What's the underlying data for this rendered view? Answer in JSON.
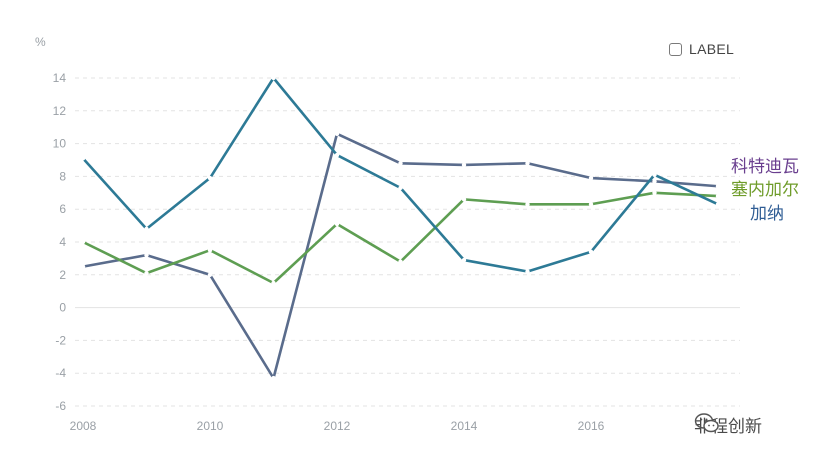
{
  "chart_data": {
    "type": "line",
    "title": "",
    "xlabel": "",
    "ylabel": "%",
    "x": [
      2008,
      2009,
      2010,
      2011,
      2012,
      2013,
      2014,
      2015,
      2016,
      2017,
      2018
    ],
    "x_ticks": [
      "2008",
      "2010",
      "2012",
      "2014",
      "2016"
    ],
    "y_ticks": [
      "14",
      "12",
      "10",
      "8",
      "6",
      "4",
      "2",
      "0",
      "-2",
      "-4",
      "-6"
    ],
    "xlim": [
      2008,
      2018
    ],
    "ylim": [
      -6,
      14.6
    ],
    "grid": "horizontal-dashed",
    "legend": {
      "label": "LABEL",
      "position": "top-right"
    },
    "series": [
      {
        "name": "科特迪瓦",
        "color": "#5a6c8c",
        "values": [
          2.5,
          3.2,
          2.0,
          -4.3,
          10.6,
          8.8,
          8.7,
          8.8,
          7.9,
          7.7,
          7.4
        ]
      },
      {
        "name": "塞内加尔",
        "color": "#5e9e52",
        "values": [
          4.0,
          2.1,
          3.5,
          1.5,
          5.1,
          2.8,
          6.6,
          6.3,
          6.3,
          7.0,
          6.8
        ]
      },
      {
        "name": "加纳",
        "color": "#2d7a96",
        "values": [
          9.1,
          4.8,
          7.9,
          14.0,
          9.3,
          7.3,
          2.9,
          2.2,
          3.4,
          8.1,
          6.3
        ]
      }
    ],
    "series_label_colors": [
      "#6a3f8f",
      "#6f9c2a",
      "#2f5d94"
    ]
  },
  "watermark": {
    "text": "非程创新",
    "icon": "wechat-icon"
  }
}
